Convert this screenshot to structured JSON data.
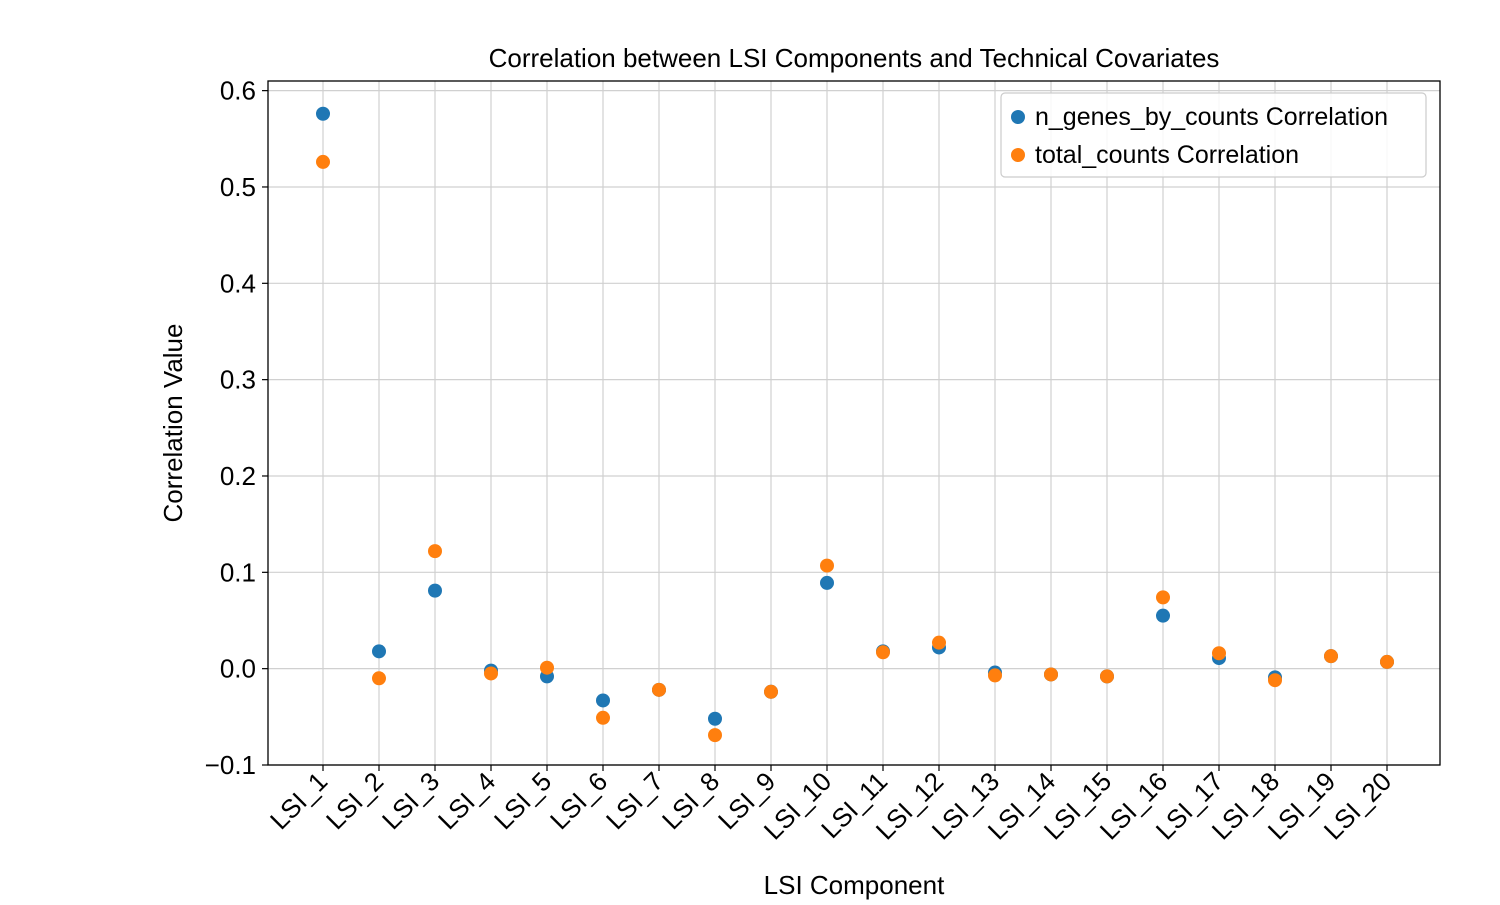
{
  "chart_data": {
    "type": "scatter",
    "title": "Correlation between LSI Components and Technical Covariates",
    "xlabel": "LSI Component",
    "ylabel": "Correlation Value",
    "categories": [
      "LSI_1",
      "LSI_2",
      "LSI_3",
      "LSI_4",
      "LSI_5",
      "LSI_6",
      "LSI_7",
      "LSI_8",
      "LSI_9",
      "LSI_10",
      "LSI_11",
      "LSI_12",
      "LSI_13",
      "LSI_14",
      "LSI_15",
      "LSI_16",
      "LSI_17",
      "LSI_18",
      "LSI_19",
      "LSI_20"
    ],
    "ylim": [
      -0.1,
      0.61
    ],
    "yticks": [
      -0.1,
      0.0,
      0.1,
      0.2,
      0.3,
      0.4,
      0.5,
      0.6
    ],
    "ytick_labels": [
      "−0.1",
      "0.0",
      "0.1",
      "0.2",
      "0.3",
      "0.4",
      "0.5",
      "0.6"
    ],
    "grid": true,
    "legend_position": "top-right",
    "series": [
      {
        "name": "n_genes_by_counts Correlation",
        "color": "#1f77b4",
        "values": [
          0.576,
          0.018,
          0.081,
          -0.002,
          -0.008,
          -0.033,
          -0.022,
          -0.052,
          -0.024,
          0.089,
          0.018,
          0.022,
          -0.004,
          -0.006,
          -0.008,
          0.055,
          0.011,
          -0.009,
          0.013,
          0.007
        ]
      },
      {
        "name": "total_counts Correlation",
        "color": "#ff7f0e",
        "values": [
          0.526,
          -0.01,
          0.122,
          -0.005,
          0.001,
          -0.051,
          -0.022,
          -0.069,
          -0.024,
          0.107,
          0.017,
          0.027,
          -0.007,
          -0.006,
          -0.008,
          0.074,
          0.016,
          -0.012,
          0.013,
          0.007
        ]
      }
    ]
  }
}
